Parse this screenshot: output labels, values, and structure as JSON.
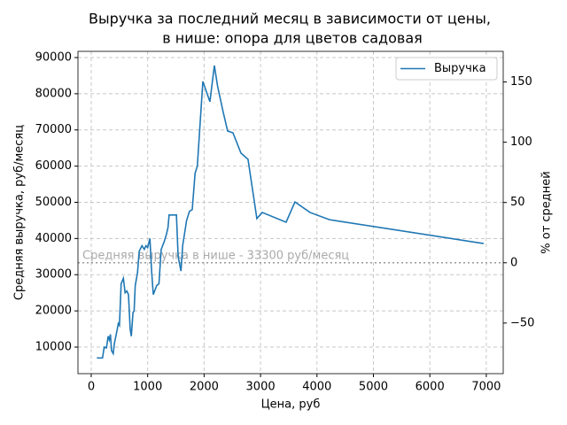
{
  "chart_data": {
    "type": "line",
    "title": [
      "Выручка за последний месяц в зависимости от цены,",
      "в нише: опора для цветов садовая"
    ],
    "x_label": "Цена, руб",
    "y_label": "Средняя выручка, руб/месяц",
    "y2_label": "% от средней",
    "x": [
      100,
      200,
      230,
      270,
      300,
      320,
      340,
      360,
      390,
      410,
      450,
      480,
      500,
      530,
      570,
      600,
      630,
      660,
      690,
      710,
      740,
      760,
      780,
      820,
      850,
      900,
      940,
      970,
      1000,
      1040,
      1070,
      1100,
      1160,
      1200,
      1240,
      1290,
      1330,
      1360,
      1380,
      1450,
      1510,
      1540,
      1590,
      1620,
      1690,
      1740,
      1790,
      1840,
      1880,
      1978,
      2103,
      2182,
      2240,
      2340,
      2417,
      2511,
      2653,
      2778,
      2935,
      3029,
      3453,
      3610,
      3877,
      4222,
      6953
    ],
    "series": [
      {
        "name": "Выручка",
        "color": "#1f77b4",
        "values": [
          7000,
          7000,
          10000,
          9800,
          13000,
          12000,
          13500,
          9000,
          8200,
          11000,
          14000,
          16500,
          16000,
          27500,
          29000,
          25000,
          25500,
          24500,
          15000,
          13000,
          19500,
          20000,
          27000,
          30500,
          36500,
          38000,
          37000,
          38000,
          37500,
          40000,
          31000,
          24500,
          27000,
          27500,
          37000,
          39000,
          41000,
          43000,
          46500,
          46500,
          46500,
          35000,
          31000,
          38000,
          45000,
          47500,
          48000,
          58000,
          60000,
          83400,
          77800,
          87800,
          82000,
          74800,
          69700,
          69200,
          63600,
          61900,
          45500,
          47200,
          44500,
          50100,
          47200,
          45200,
          38600
        ]
      }
    ],
    "reference_line": {
      "value": 33300,
      "label": "Средняя выручка в нише - 33300 руб/месяц"
    },
    "xlim": [
      -235,
      7300
    ],
    "ylim": [
      2660,
      91710
    ],
    "y2lim": [
      -92.0,
      175.4
    ],
    "xticks": [
      0,
      1000,
      2000,
      3000,
      4000,
      5000,
      6000,
      7000
    ],
    "yticks": [
      10000,
      20000,
      30000,
      40000,
      50000,
      60000,
      70000,
      80000,
      90000
    ],
    "y2ticks": [
      {
        "value": -50,
        "label": "−50"
      },
      0,
      50,
      100,
      150
    ],
    "grid": true,
    "legend": "upper right"
  }
}
